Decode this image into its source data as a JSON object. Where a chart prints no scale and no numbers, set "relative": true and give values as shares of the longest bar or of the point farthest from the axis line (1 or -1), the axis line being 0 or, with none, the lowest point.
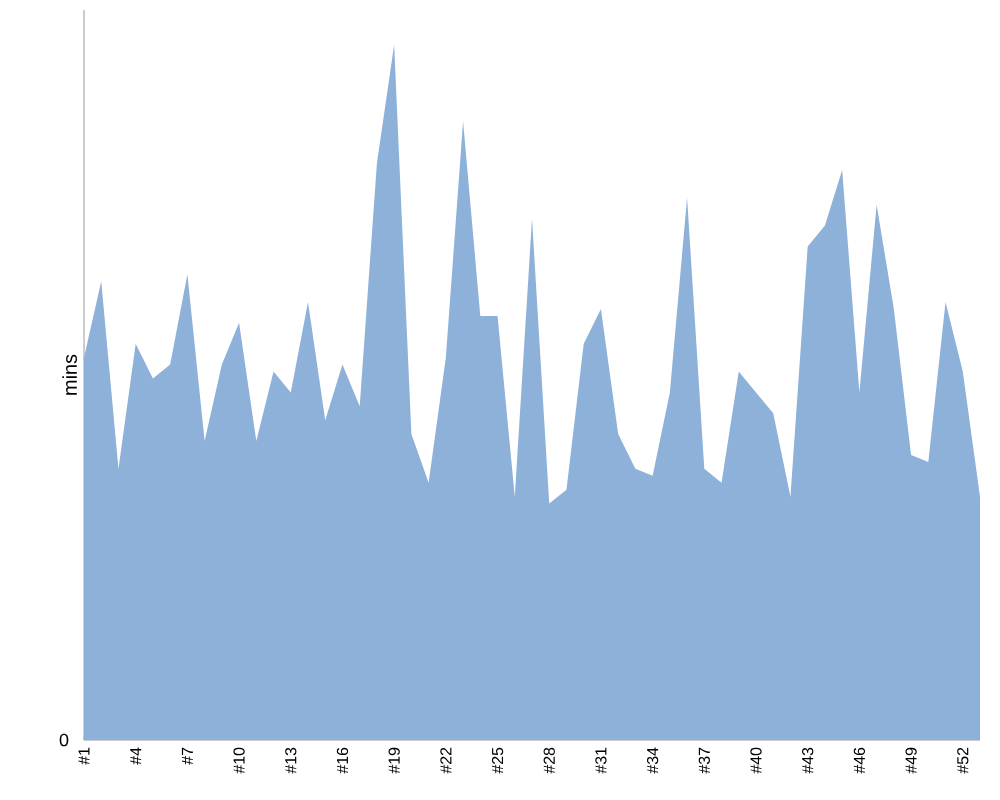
{
  "chart_data": {
    "type": "area",
    "relative": true,
    "ylabel": "mins",
    "color": "#8eb1da",
    "annotations": [
      "0"
    ],
    "categories": [
      "#1",
      null,
      null,
      "#4",
      null,
      null,
      "#7",
      null,
      null,
      "#10",
      null,
      null,
      "#13",
      null,
      null,
      "#16",
      null,
      null,
      "#19",
      null,
      null,
      "#22",
      null,
      null,
      "#25",
      null,
      null,
      "#28",
      null,
      null,
      "#31",
      null,
      null,
      "#34",
      null,
      null,
      "#37",
      null,
      null,
      "#40",
      null,
      null,
      "#43",
      null,
      null,
      "#46",
      null,
      null,
      "#49",
      null,
      null,
      "#52",
      null
    ],
    "values": [
      0.55,
      0.66,
      0.39,
      0.57,
      0.52,
      0.54,
      0.67,
      0.43,
      0.54,
      0.6,
      0.43,
      0.53,
      0.5,
      0.63,
      0.46,
      0.54,
      0.48,
      0.83,
      1.0,
      0.44,
      0.37,
      0.55,
      0.89,
      0.61,
      0.61,
      0.35,
      0.75,
      0.34,
      0.36,
      0.57,
      0.62,
      0.44,
      0.39,
      0.38,
      0.5,
      0.78,
      0.39,
      0.37,
      0.53,
      0.5,
      0.47,
      0.35,
      0.71,
      0.74,
      0.82,
      0.5,
      0.77,
      0.62,
      0.41,
      0.4,
      0.63,
      0.53,
      0.35
    ]
  }
}
